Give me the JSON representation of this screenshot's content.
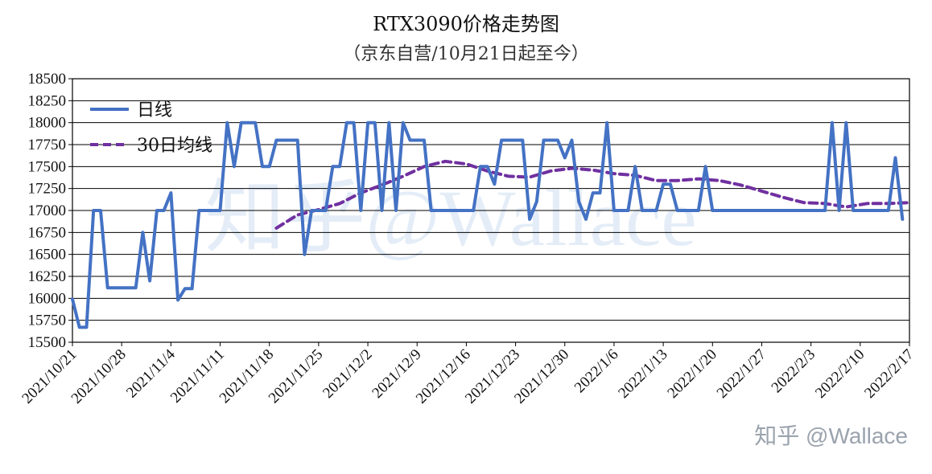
{
  "watermark": {
    "background_text": "知乎@Wallace",
    "corner_text": "知乎 @Wallace"
  },
  "colors": {
    "daily": "#4472C4",
    "ma30": "#7030A0",
    "grid": "#000000"
  },
  "chart_data": {
    "type": "line",
    "title": "RTX3090价格走势图",
    "subtitle": "（京东自营/10月21日起至今）",
    "xlabel": "",
    "ylabel": "",
    "ylim": [
      15500,
      18500
    ],
    "y_ticks": [
      15500,
      15750,
      16000,
      16250,
      16500,
      16750,
      17000,
      17250,
      17500,
      17750,
      18000,
      18250,
      18500
    ],
    "x_range": [
      0,
      119
    ],
    "x_tick_labels": [
      "2021/10/21",
      "2021/10/28",
      "2021/11/4",
      "2021/11/11",
      "2021/11/18",
      "2021/11/25",
      "2021/12/2",
      "2021/12/9",
      "2021/12/16",
      "2021/12/23",
      "2021/12/30",
      "2022/1/6",
      "2022/1/13",
      "2022/1/20",
      "2022/1/27",
      "2022/2/3",
      "2022/2/10",
      "2022/2/17"
    ],
    "grid": "horizontal",
    "legend": "top-left",
    "series": [
      {
        "name": "日线",
        "style": "solid",
        "points": [
          [
            0,
            15990
          ],
          [
            1,
            15670
          ],
          [
            2,
            15670
          ],
          [
            3,
            17000
          ],
          [
            4,
            17000
          ],
          [
            5,
            16120
          ],
          [
            6,
            16120
          ],
          [
            7,
            16120
          ],
          [
            8,
            16120
          ],
          [
            9,
            16120
          ],
          [
            10,
            16750
          ],
          [
            11,
            16200
          ],
          [
            12,
            17000
          ],
          [
            13,
            17000
          ],
          [
            14,
            17200
          ],
          [
            15,
            15980
          ],
          [
            16,
            16110
          ],
          [
            17,
            16110
          ],
          [
            18,
            17000
          ],
          [
            19,
            17000
          ],
          [
            20,
            17000
          ],
          [
            21,
            17000
          ],
          [
            22,
            18000
          ],
          [
            23,
            17500
          ],
          [
            24,
            18000
          ],
          [
            25,
            18000
          ],
          [
            26,
            18000
          ],
          [
            27,
            17500
          ],
          [
            28,
            17500
          ],
          [
            29,
            17800
          ],
          [
            30,
            17800
          ],
          [
            31,
            17800
          ],
          [
            32,
            17800
          ],
          [
            33,
            16500
          ],
          [
            34,
            17000
          ],
          [
            35,
            17000
          ],
          [
            36,
            17000
          ],
          [
            37,
            17500
          ],
          [
            38,
            17500
          ],
          [
            39,
            18000
          ],
          [
            40,
            18000
          ],
          [
            41,
            17000
          ],
          [
            42,
            18000
          ],
          [
            43,
            18000
          ],
          [
            44,
            17000
          ],
          [
            45,
            18000
          ],
          [
            46,
            17000
          ],
          [
            47,
            18000
          ],
          [
            48,
            17800
          ],
          [
            49,
            17800
          ],
          [
            50,
            17800
          ],
          [
            51,
            17000
          ],
          [
            52,
            17000
          ],
          [
            53,
            17000
          ],
          [
            54,
            17000
          ],
          [
            55,
            17000
          ],
          [
            56,
            17000
          ],
          [
            57,
            17000
          ],
          [
            58,
            17500
          ],
          [
            59,
            17500
          ],
          [
            60,
            17300
          ],
          [
            61,
            17800
          ],
          [
            62,
            17800
          ],
          [
            63,
            17800
          ],
          [
            64,
            17800
          ],
          [
            65,
            16900
          ],
          [
            66,
            17100
          ],
          [
            67,
            17800
          ],
          [
            68,
            17800
          ],
          [
            69,
            17800
          ],
          [
            70,
            17600
          ],
          [
            71,
            17800
          ],
          [
            72,
            17100
          ],
          [
            73,
            16900
          ],
          [
            74,
            17200
          ],
          [
            75,
            17200
          ],
          [
            76,
            18000
          ],
          [
            77,
            17000
          ],
          [
            78,
            17000
          ],
          [
            79,
            17000
          ],
          [
            80,
            17500
          ],
          [
            81,
            17000
          ],
          [
            82,
            17000
          ],
          [
            83,
            17000
          ],
          [
            84,
            17300
          ],
          [
            85,
            17300
          ],
          [
            86,
            17000
          ],
          [
            87,
            17000
          ],
          [
            88,
            17000
          ],
          [
            89,
            17000
          ],
          [
            90,
            17500
          ],
          [
            91,
            17000
          ],
          [
            92,
            17000
          ],
          [
            93,
            17000
          ],
          [
            94,
            17000
          ],
          [
            95,
            17000
          ],
          [
            96,
            17000
          ],
          [
            97,
            17000
          ],
          [
            98,
            17000
          ],
          [
            99,
            17000
          ],
          [
            100,
            17000
          ],
          [
            101,
            17000
          ],
          [
            102,
            17000
          ],
          [
            103,
            17000
          ],
          [
            104,
            17000
          ],
          [
            105,
            17000
          ],
          [
            106,
            17000
          ],
          [
            107,
            17000
          ],
          [
            108,
            18000
          ],
          [
            109,
            17000
          ],
          [
            110,
            18000
          ],
          [
            111,
            17000
          ],
          [
            112,
            17000
          ],
          [
            113,
            17000
          ],
          [
            114,
            17000
          ],
          [
            115,
            17000
          ],
          [
            116,
            17000
          ],
          [
            117,
            17600
          ],
          [
            118,
            16900
          ]
        ]
      },
      {
        "name": "30日均线",
        "style": "dashed",
        "points": [
          [
            29,
            16800
          ],
          [
            32,
            16950
          ],
          [
            35,
            17010
          ],
          [
            38,
            17080
          ],
          [
            41,
            17200
          ],
          [
            44,
            17290
          ],
          [
            47,
            17390
          ],
          [
            50,
            17500
          ],
          [
            53,
            17560
          ],
          [
            56,
            17530
          ],
          [
            59,
            17450
          ],
          [
            62,
            17390
          ],
          [
            65,
            17380
          ],
          [
            68,
            17450
          ],
          [
            71,
            17480
          ],
          [
            74,
            17460
          ],
          [
            77,
            17420
          ],
          [
            80,
            17400
          ],
          [
            83,
            17340
          ],
          [
            86,
            17340
          ],
          [
            89,
            17360
          ],
          [
            92,
            17340
          ],
          [
            95,
            17290
          ],
          [
            98,
            17220
          ],
          [
            101,
            17150
          ],
          [
            104,
            17090
          ],
          [
            107,
            17080
          ],
          [
            110,
            17040
          ],
          [
            113,
            17080
          ],
          [
            116,
            17080
          ],
          [
            119,
            17090
          ]
        ]
      }
    ]
  }
}
